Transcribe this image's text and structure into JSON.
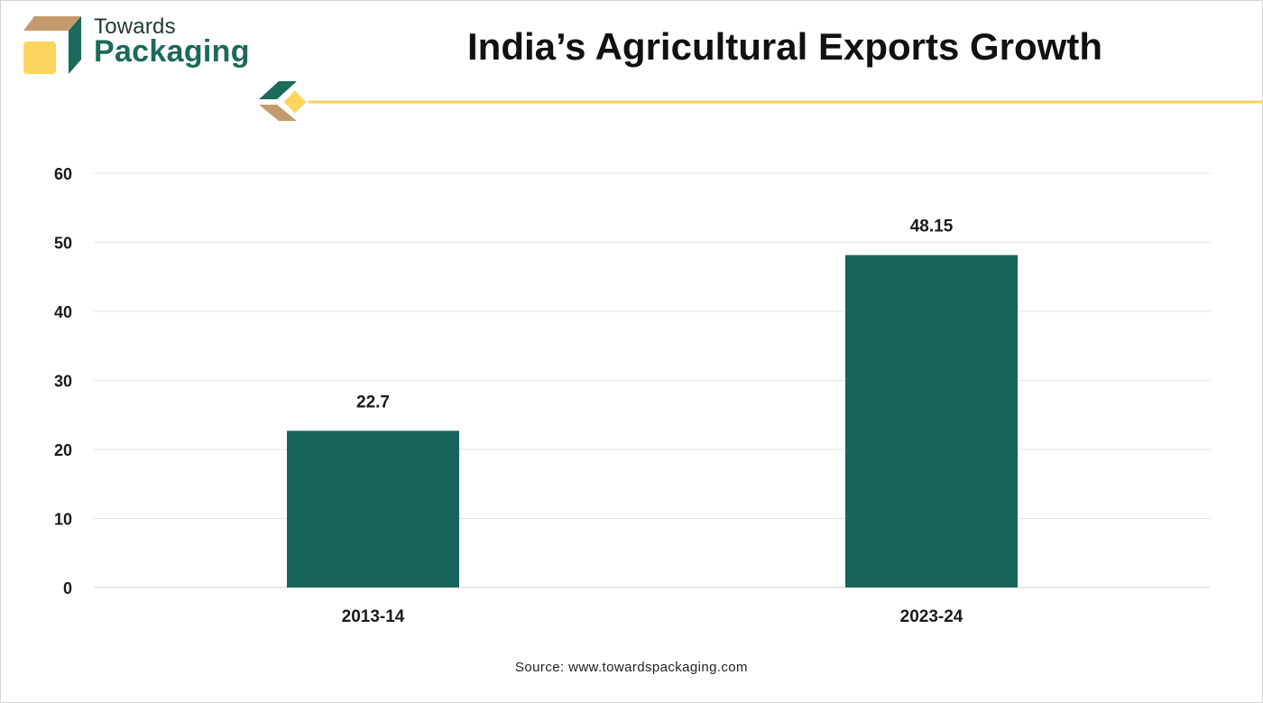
{
  "brand": {
    "line1": "Towards",
    "line2": "Packaging",
    "icon": "box-logo-icon",
    "colors": {
      "green": "#1b6a5a",
      "tan": "#c49a6c",
      "yellow": "#fcd55f",
      "dark": "#1f3b33"
    }
  },
  "title": "India’s Agricultural Exports Growth",
  "source": "Source: www.towardspackaging.com",
  "colors": {
    "bar": "#17655a",
    "accent_line": "#f5d25c",
    "grid": "#e3e3e3"
  },
  "chart_data": {
    "type": "bar",
    "title": "India’s Agricultural Exports Growth",
    "xlabel": "",
    "ylabel": "",
    "categories": [
      "2013-14",
      "2023-24"
    ],
    "values": [
      22.7,
      48.15
    ],
    "data_labels": [
      "22.7",
      "48.15"
    ],
    "ylim": [
      0,
      60
    ],
    "yticks": [
      0,
      10,
      20,
      30,
      40,
      50,
      60
    ],
    "grid": true,
    "legend": "none"
  }
}
